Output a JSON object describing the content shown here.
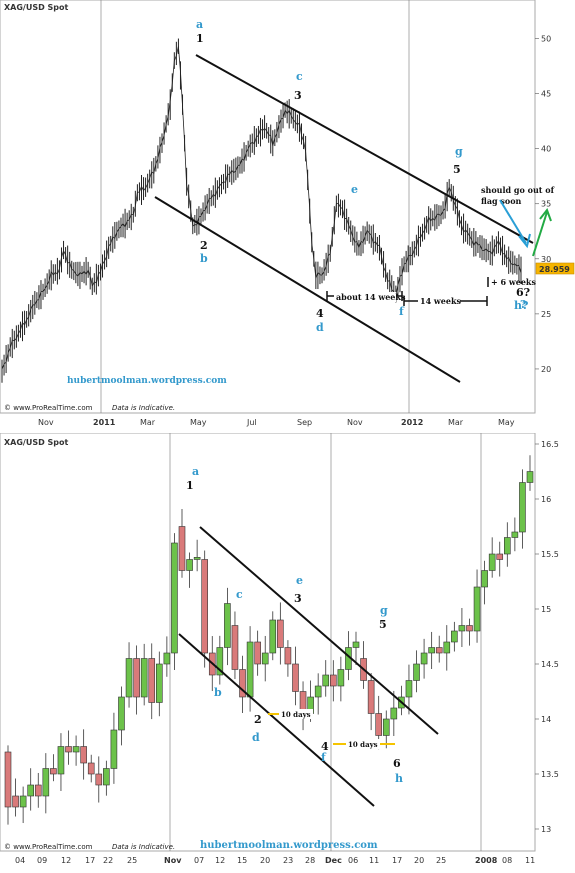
{
  "chart_data": [
    {
      "type": "candlestick",
      "title": "XAG/USD Spot",
      "watermark": "hubertmoolman.wordpress.com",
      "footer": "© www.ProRealTime.com",
      "footer_note": "Data is Indicative.",
      "ylim": [
        16,
        53.5
      ],
      "yticks": [
        "50",
        "45",
        "40",
        "35",
        "30",
        "25",
        "20"
      ],
      "xticks": [
        "Nov",
        "2011",
        "Mar",
        "May",
        "Jul",
        "Sep",
        "Nov",
        "2012",
        "Mar",
        "May"
      ],
      "last_price": "28.959",
      "anchors": [
        [
          0,
          19.8
        ],
        [
          4,
          22
        ],
        [
          12,
          24.5
        ],
        [
          16,
          26
        ],
        [
          20,
          27
        ],
        [
          24,
          28.5
        ],
        [
          28,
          29
        ],
        [
          30,
          30.8
        ],
        [
          34,
          29
        ],
        [
          38,
          28.5
        ],
        [
          42,
          29
        ],
        [
          44,
          27.5
        ],
        [
          48,
          28.8
        ],
        [
          52,
          31
        ],
        [
          56,
          32.5
        ],
        [
          60,
          33.2
        ],
        [
          64,
          34
        ],
        [
          66,
          36
        ],
        [
          70,
          36.5
        ],
        [
          74,
          38
        ],
        [
          78,
          40.5
        ],
        [
          82,
          44
        ],
        [
          84,
          48
        ],
        [
          86,
          49.3
        ],
        [
          88,
          44
        ],
        [
          90,
          37
        ],
        [
          93,
          33
        ],
        [
          96,
          33.5
        ],
        [
          100,
          35
        ],
        [
          104,
          36
        ],
        [
          110,
          37.5
        ],
        [
          116,
          38.5
        ],
        [
          120,
          40
        ],
        [
          124,
          41
        ],
        [
          128,
          42
        ],
        [
          132,
          40.5
        ],
        [
          138,
          43.5
        ],
        [
          141,
          43
        ],
        [
          145,
          42
        ],
        [
          148,
          40
        ],
        [
          151,
          31.5
        ],
        [
          153,
          28.5
        ],
        [
          156,
          28.5
        ],
        [
          160,
          30.5
        ],
        [
          163,
          35
        ],
        [
          166,
          34.5
        ],
        [
          170,
          32.5
        ],
        [
          174,
          31
        ],
        [
          178,
          32.5
        ],
        [
          184,
          31
        ],
        [
          188,
          28
        ],
        [
          192,
          26.8
        ],
        [
          196,
          29.5
        ],
        [
          200,
          30.5
        ],
        [
          204,
          32
        ],
        [
          208,
          33.5
        ],
        [
          214,
          34
        ],
        [
          216,
          34.8
        ],
        [
          218,
          36.5
        ],
        [
          220,
          35.5
        ],
        [
          224,
          33
        ],
        [
          230,
          31.5
        ],
        [
          234,
          31
        ],
        [
          238,
          30.5
        ],
        [
          242,
          31.5
        ],
        [
          246,
          30
        ],
        [
          250,
          29.5
        ],
        [
          253,
          28.959
        ]
      ],
      "wave_labels": [
        {
          "num": "1",
          "letter": "a"
        },
        {
          "num": "2",
          "letter": "b"
        },
        {
          "num": "3",
          "letter": "c"
        },
        {
          "num": "4",
          "letter": "d"
        },
        {
          "letter": "e"
        },
        {
          "letter": "f"
        },
        {
          "num": "5",
          "letter": "g"
        },
        {
          "num": "6?",
          "letter": "h?"
        }
      ],
      "annotations": [
        "about 14 weeks",
        "14 weeks",
        "+ 6 weeks",
        "should go out of",
        "flag soon"
      ]
    },
    {
      "type": "candlestick",
      "title": "XAG/USD Spot",
      "watermark": "hubertmoolman.wordpress.com",
      "footer": "© www.ProRealTime.com",
      "footer_note": "Data is Indicative.",
      "ylim": [
        12.8,
        16.6
      ],
      "yticks": [
        "16.5",
        "16",
        "15.5",
        "15",
        "14.5",
        "14",
        "13.5",
        "13"
      ],
      "xticks": [
        "04",
        "09",
        "12",
        "17",
        "22",
        "25",
        "Nov",
        "07",
        "12",
        "15",
        "20",
        "23",
        "28",
        "Dec",
        "06",
        "11",
        "17",
        "20",
        "25",
        "2008",
        "08",
        "11"
      ],
      "candles": [
        [
          13.7,
          13.2
        ],
        [
          13.3,
          13.2
        ],
        [
          13.2,
          13.3
        ],
        [
          13.3,
          13.4
        ],
        [
          13.4,
          13.3
        ],
        [
          13.3,
          13.55
        ],
        [
          13.55,
          13.5
        ],
        [
          13.5,
          13.75
        ],
        [
          13.75,
          13.7
        ],
        [
          13.7,
          13.75
        ],
        [
          13.75,
          13.6
        ],
        [
          13.6,
          13.5
        ],
        [
          13.5,
          13.4
        ],
        [
          13.4,
          13.55
        ],
        [
          13.55,
          13.9
        ],
        [
          13.9,
          14.2
        ],
        [
          14.2,
          14.55
        ],
        [
          14.55,
          14.2
        ],
        [
          14.2,
          14.55
        ],
        [
          14.55,
          14.15
        ],
        [
          14.15,
          14.5
        ],
        [
          14.5,
          14.6
        ],
        [
          14.6,
          15.6
        ],
        [
          15.75,
          15.35
        ],
        [
          15.35,
          15.45
        ],
        [
          15.45,
          15.47
        ],
        [
          15.45,
          14.6
        ],
        [
          14.6,
          14.4
        ],
        [
          14.4,
          14.65
        ],
        [
          14.65,
          15.05
        ],
        [
          14.85,
          14.45
        ],
        [
          14.45,
          14.2
        ],
        [
          14.2,
          14.7
        ],
        [
          14.7,
          14.5
        ],
        [
          14.5,
          14.6
        ],
        [
          14.6,
          14.9
        ],
        [
          14.9,
          14.65
        ],
        [
          14.65,
          14.5
        ],
        [
          14.5,
          14.25
        ],
        [
          14.25,
          14.05
        ],
        [
          14.05,
          14.2
        ],
        [
          14.2,
          14.3
        ],
        [
          14.3,
          14.4
        ],
        [
          14.4,
          14.3
        ],
        [
          14.3,
          14.45
        ],
        [
          14.45,
          14.65
        ],
        [
          14.65,
          14.7
        ],
        [
          14.55,
          14.35
        ],
        [
          14.35,
          14.05
        ],
        [
          14.05,
          13.85
        ],
        [
          13.85,
          14
        ],
        [
          14,
          14.1
        ],
        [
          14.1,
          14.2
        ],
        [
          14.2,
          14.35
        ],
        [
          14.35,
          14.5
        ],
        [
          14.5,
          14.6
        ],
        [
          14.6,
          14.65
        ],
        [
          14.65,
          14.6
        ],
        [
          14.6,
          14.7
        ],
        [
          14.7,
          14.8
        ],
        [
          14.8,
          14.85
        ],
        [
          14.85,
          14.8
        ],
        [
          14.8,
          15.2
        ],
        [
          15.2,
          15.35
        ],
        [
          15.35,
          15.5
        ],
        [
          15.5,
          15.45
        ],
        [
          15.5,
          15.65
        ],
        [
          15.65,
          15.7
        ],
        [
          15.7,
          16.15
        ],
        [
          16.15,
          16.25
        ]
      ],
      "wave_labels": [
        {
          "num": "1",
          "letter": "a"
        },
        {
          "letter": "b"
        },
        {
          "letter": "c"
        },
        {
          "num": "2",
          "letter": "d"
        },
        {
          "num": "3",
          "letter": "e"
        },
        {
          "num": "4",
          "letter": "f"
        },
        {
          "num": "5",
          "letter": "g"
        },
        {
          "num": "6",
          "letter": "h"
        }
      ],
      "annotations": [
        "10 days",
        "10 days"
      ]
    }
  ]
}
